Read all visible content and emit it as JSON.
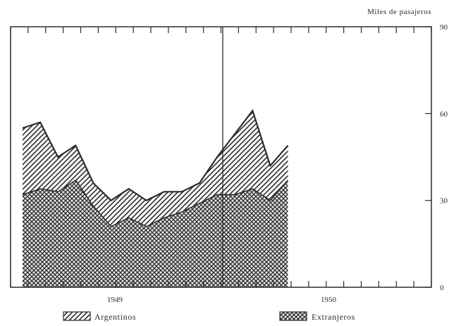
{
  "chart_data": {
    "type": "area",
    "stacked": true,
    "title": "",
    "unit_label": "Miles de pasajeros",
    "xlabel": "",
    "ylabel": "",
    "ylim": [
      0,
      90
    ],
    "y_ticks": [
      0,
      30,
      60,
      90
    ],
    "y_axis_side": "right",
    "x_period_labels": [
      "1949",
      "1950"
    ],
    "months_per_year": 12,
    "grid": false,
    "legend_placement": "bottom",
    "series": [
      {
        "name": "Extranjeros",
        "pattern": "cross-hatch",
        "values": [
          32,
          34,
          33,
          37,
          28,
          21,
          24,
          21,
          24,
          26,
          29,
          32,
          32,
          34,
          30,
          37
        ]
      },
      {
        "name": "Argentinos",
        "pattern": "diagonal-hatch",
        "values": [
          23,
          23,
          12,
          12,
          8,
          9,
          10,
          9,
          9,
          7,
          7,
          13,
          21,
          27,
          12,
          12
        ]
      }
    ],
    "totals": [
      55,
      57,
      45,
      49,
      36,
      30,
      34,
      30,
      33,
      33,
      36,
      45,
      53,
      61,
      42,
      49
    ]
  },
  "colors": {
    "ink": "#2b2b2b",
    "background": "#ffffff"
  }
}
